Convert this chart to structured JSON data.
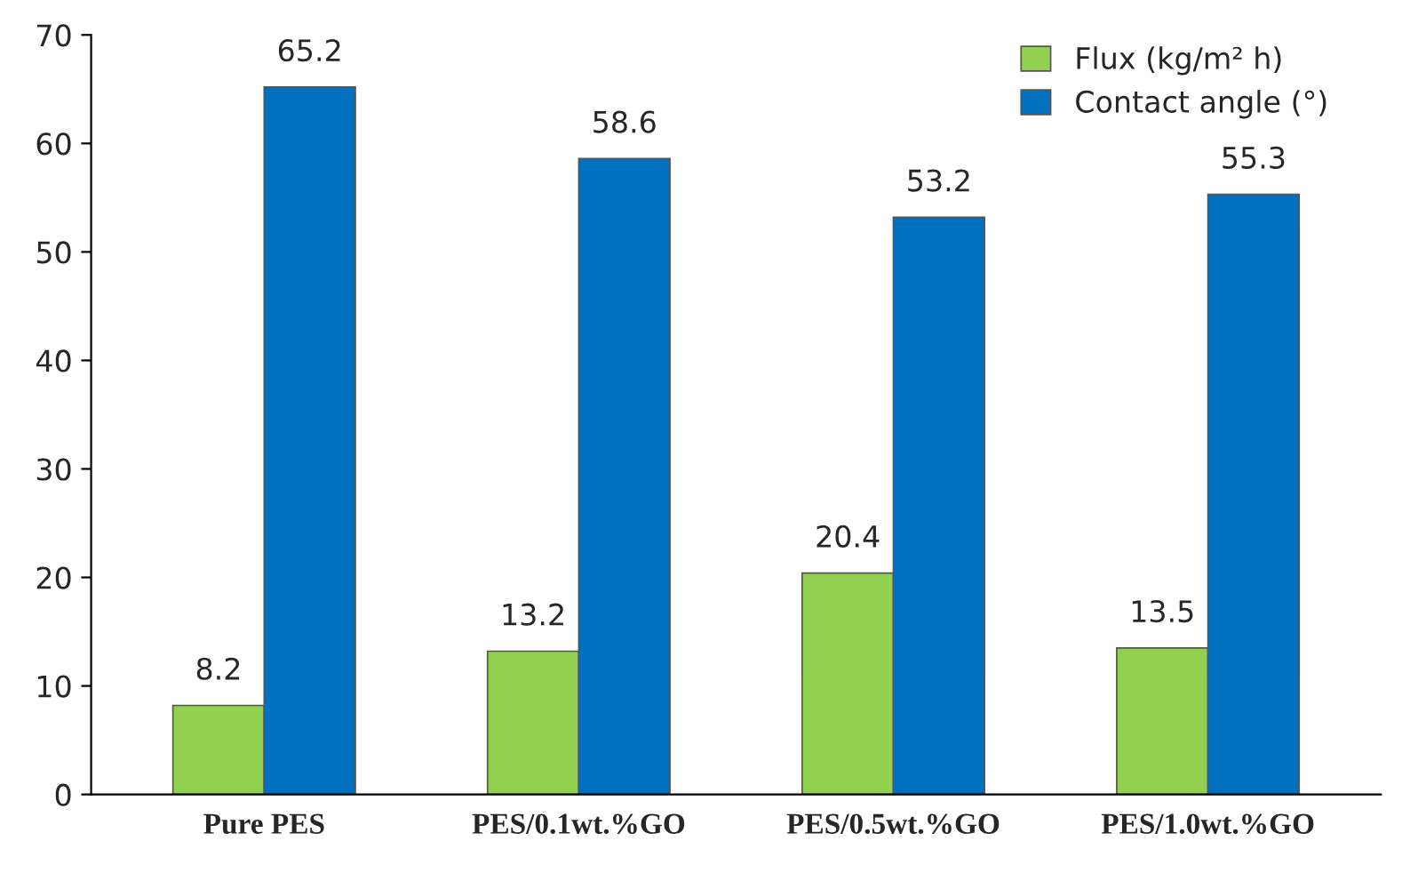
{
  "chart_data": {
    "type": "bar",
    "categories": [
      "Pure PES",
      "PES/0.1wt.%GO",
      "PES/0.5wt.%GO",
      "PES/1.0wt.%GO"
    ],
    "series": [
      {
        "name": "Flux (kg/m² h)",
        "color": "#92d050",
        "values": [
          8.2,
          13.2,
          20.4,
          13.5
        ]
      },
      {
        "name": "Contact angle (°)",
        "color": "#0070c0",
        "values": [
          65.2,
          58.6,
          53.2,
          55.3
        ]
      }
    ],
    "ylim": [
      0,
      70
    ],
    "yticks": [
      0,
      10,
      20,
      30,
      40,
      50,
      60,
      70
    ],
    "data_labels": true,
    "legend": "top right",
    "grid": false
  }
}
